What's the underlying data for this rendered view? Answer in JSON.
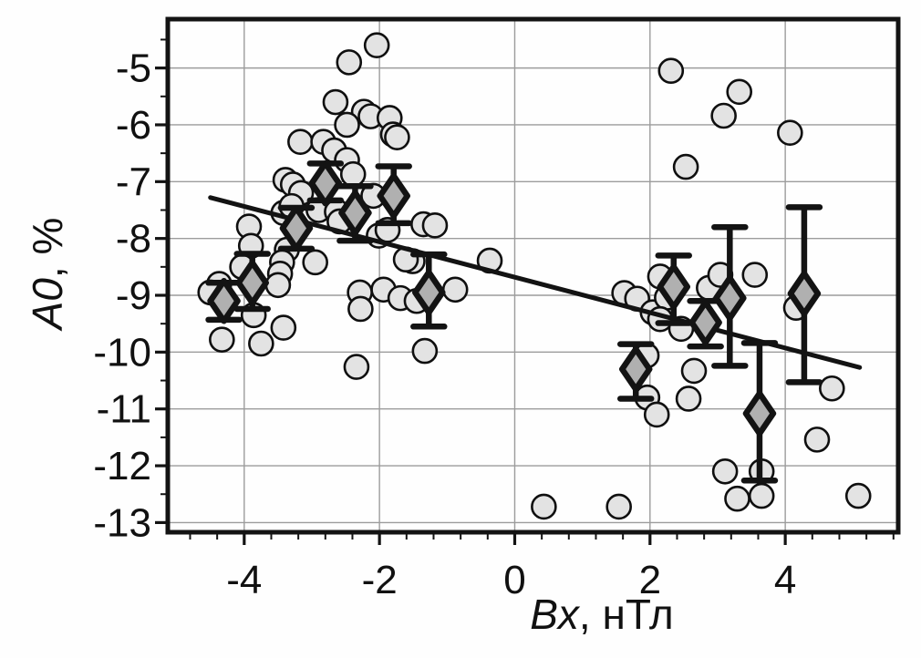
{
  "figure": {
    "background": "#fefefe",
    "frame_color": "#131313",
    "grid_color": "#9c9c9c",
    "tick_color": "#131313",
    "label_color": "#111111"
  },
  "chart_data": {
    "type": "scatter",
    "title": "",
    "xlabel_var": "Bx",
    "xlabel_rest": ", нТл",
    "ylabel_var": "A0",
    "ylabel_rest": ", %",
    "xlim": [
      -5.13,
      5.67
    ],
    "ylim": [
      -13.17,
      -4.14
    ],
    "x_major_ticks": [
      -4,
      -2,
      0,
      2,
      4
    ],
    "x_minor_step": 0.4,
    "y_major_ticks": [
      -5,
      -6,
      -7,
      -8,
      -9,
      -10,
      -11,
      -12,
      -13
    ],
    "y_minor_step": 0.5,
    "grid": true,
    "legend": "none",
    "series": [
      {
        "name": "individual-observations",
        "marker": "circle",
        "radius": 13,
        "fill": "#e3e3e3",
        "stroke": "#0f0f0f",
        "stroke_width": 2.6,
        "points": [
          [
            -2.04,
            -4.6
          ],
          [
            -2.45,
            -4.9
          ],
          [
            -2.65,
            -5.6
          ],
          [
            -2.23,
            -5.77
          ],
          [
            -2.13,
            -5.85
          ],
          [
            -1.85,
            -5.88
          ],
          [
            -2.48,
            -6.0
          ],
          [
            -1.8,
            -6.17
          ],
          [
            -3.17,
            -6.3
          ],
          [
            -2.83,
            -6.3
          ],
          [
            -2.67,
            -6.45
          ],
          [
            -1.74,
            -6.22
          ],
          [
            -2.48,
            -6.62
          ],
          [
            -2.39,
            -6.87
          ],
          [
            -3.39,
            -6.97
          ],
          [
            -3.28,
            -7.05
          ],
          [
            -3.16,
            -7.2
          ],
          [
            -3.42,
            -7.55
          ],
          [
            -3.3,
            -7.43
          ],
          [
            -2.9,
            -7.5
          ],
          [
            -2.63,
            -7.53
          ],
          [
            -2.59,
            -7.7
          ],
          [
            -2.09,
            -7.25
          ],
          [
            -2.01,
            -7.95
          ],
          [
            -1.88,
            -7.85
          ],
          [
            -1.35,
            -7.75
          ],
          [
            -1.18,
            -7.77
          ],
          [
            -3.37,
            -8.2
          ],
          [
            -3.44,
            -8.42
          ],
          [
            -3.47,
            -8.62
          ],
          [
            -3.5,
            -8.82
          ],
          [
            -2.95,
            -8.42
          ],
          [
            -3.93,
            -7.79
          ],
          [
            -3.9,
            -8.13
          ],
          [
            -4.03,
            -8.5
          ],
          [
            -4.37,
            -8.8
          ],
          [
            -4.5,
            -8.95
          ],
          [
            -4.33,
            -9.78
          ],
          [
            -3.86,
            -9.35
          ],
          [
            -3.75,
            -9.85
          ],
          [
            -3.42,
            -9.57
          ],
          [
            -2.29,
            -8.95
          ],
          [
            -2.28,
            -9.24
          ],
          [
            -1.94,
            -8.9
          ],
          [
            -1.69,
            -9.05
          ],
          [
            -1.45,
            -9.1
          ],
          [
            -1.51,
            -8.4
          ],
          [
            -1.61,
            -8.37
          ],
          [
            -2.34,
            -10.26
          ],
          [
            -1.33,
            -9.98
          ],
          [
            -0.88,
            -8.9
          ],
          [
            -0.37,
            -8.39
          ],
          [
            0.43,
            -12.72
          ],
          [
            1.54,
            -12.72
          ],
          [
            2.31,
            -5.05
          ],
          [
            3.32,
            -5.42
          ],
          [
            3.09,
            -5.84
          ],
          [
            4.07,
            -6.14
          ],
          [
            2.53,
            -6.74
          ],
          [
            1.62,
            -8.96
          ],
          [
            1.81,
            -9.06
          ],
          [
            2.04,
            -9.3
          ],
          [
            2.15,
            -8.67
          ],
          [
            2.25,
            -9.04
          ],
          [
            2.15,
            -9.42
          ],
          [
            2.46,
            -9.59
          ],
          [
            2.87,
            -8.87
          ],
          [
            3.04,
            -8.64
          ],
          [
            3.55,
            -8.64
          ],
          [
            4.16,
            -9.22
          ],
          [
            2.65,
            -10.33
          ],
          [
            1.95,
            -10.06
          ],
          [
            1.96,
            -10.8
          ],
          [
            2.1,
            -11.1
          ],
          [
            2.57,
            -10.82
          ],
          [
            4.69,
            -10.64
          ],
          [
            4.47,
            -11.54
          ],
          [
            3.11,
            -12.1
          ],
          [
            3.65,
            -12.1
          ],
          [
            3.29,
            -12.58
          ],
          [
            3.65,
            -12.53
          ],
          [
            5.08,
            -12.53
          ]
        ]
      },
      {
        "name": "binned-means-with-error-bars",
        "marker": "diamond",
        "half_width": 15,
        "half_height": 22,
        "fill": "#b0b0b0",
        "stroke": "#131313",
        "stroke_width": 6.5,
        "cap_half_width": 17,
        "points": [
          {
            "x": -4.3,
            "y": -9.1,
            "lo": -9.43,
            "hi": -8.78
          },
          {
            "x": -3.88,
            "y": -8.78,
            "lo": -9.24,
            "hi": -8.27
          },
          {
            "x": -3.23,
            "y": -7.82,
            "lo": -8.18,
            "hi": -7.46
          },
          {
            "x": -2.8,
            "y": -7.03,
            "lo": -7.33,
            "hi": -6.68
          },
          {
            "x": -2.36,
            "y": -7.55,
            "lo": -8.04,
            "hi": -7.08
          },
          {
            "x": -1.79,
            "y": -7.25,
            "lo": -7.73,
            "hi": -6.73
          },
          {
            "x": -1.27,
            "y": -8.95,
            "lo": -9.55,
            "hi": -8.28
          },
          {
            "x": 1.79,
            "y": -10.3,
            "lo": -10.82,
            "hi": -9.86
          },
          {
            "x": 2.35,
            "y": -8.85,
            "lo": -9.49,
            "hi": -8.3
          },
          {
            "x": 2.82,
            "y": -9.48,
            "lo": -9.9,
            "hi": -9.1
          },
          {
            "x": 3.18,
            "y": -9.05,
            "lo": -10.24,
            "hi": -7.8
          },
          {
            "x": 3.62,
            "y": -11.08,
            "lo": -12.26,
            "hi": -9.84
          },
          {
            "x": 4.28,
            "y": -8.97,
            "lo": -10.53,
            "hi": -7.45
          }
        ]
      },
      {
        "name": "linear-trend",
        "marker": "line",
        "stroke": "#131313",
        "stroke_width": 5,
        "from": [
          -4.5,
          -7.28
        ],
        "to": [
          5.1,
          -10.27
        ]
      }
    ]
  }
}
